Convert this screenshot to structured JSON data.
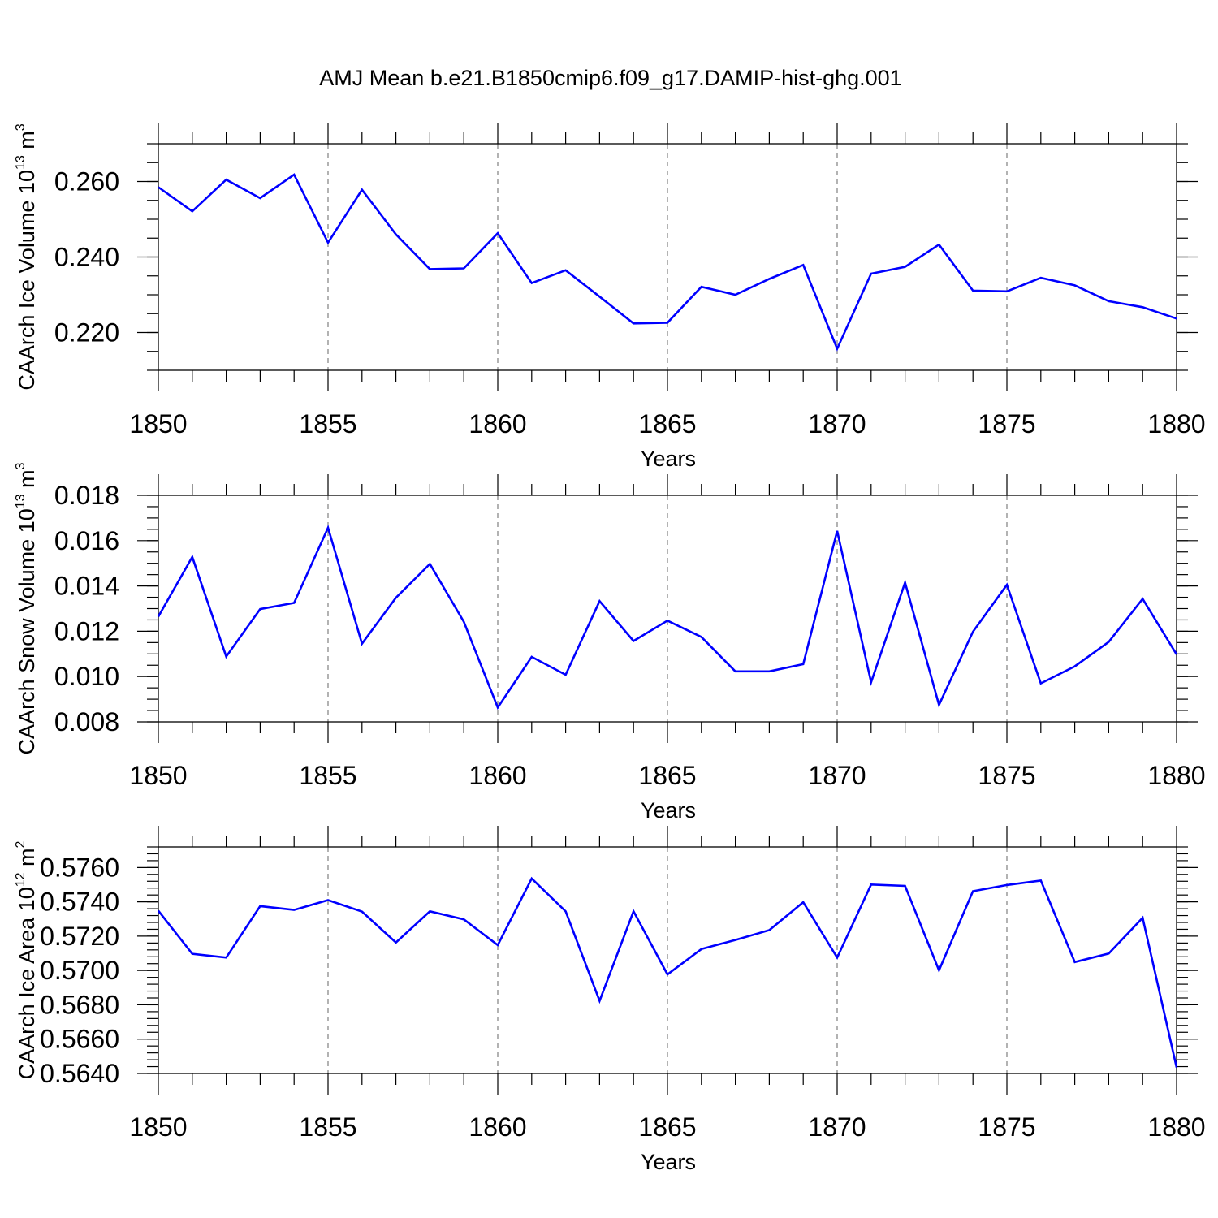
{
  "title": "AMJ Mean b.e21.B1850cmip6.f09_g17.DAMIP-hist-ghg.001",
  "colors": {
    "line": "#0000ff",
    "axis": "#000000",
    "grid": "#808080",
    "background": "#ffffff"
  },
  "chart_data": [
    {
      "type": "line",
      "id": "ice-volume",
      "title": "",
      "xlabel": "Years",
      "ylabel": {
        "main": "CAArch Ice Volume 10",
        "exp": "13",
        "unit": " m",
        "unit_exp": "3"
      },
      "xlim": [
        1850,
        1880
      ],
      "ylim": [
        0.21,
        0.27
      ],
      "x_ticks": [
        1850,
        1855,
        1860,
        1865,
        1870,
        1875,
        1880
      ],
      "x_tick_labels": [
        "1850",
        "1855",
        "1860",
        "1865",
        "1870",
        "1875",
        "1880"
      ],
      "y_ticks": [
        0.22,
        0.24,
        0.26
      ],
      "y_tick_labels": [
        "0.220",
        "0.240",
        "0.260"
      ],
      "y_minor_step": 0.005,
      "grid": "x-dashed",
      "series": [
        {
          "name": "CAArch Ice Volume",
          "x": [
            1850,
            1851,
            1852,
            1853,
            1854,
            1855,
            1856,
            1857,
            1858,
            1859,
            1860,
            1861,
            1862,
            1863,
            1864,
            1865,
            1866,
            1867,
            1868,
            1869,
            1870,
            1871,
            1872,
            1873,
            1874,
            1875,
            1876,
            1877,
            1878,
            1879,
            1880
          ],
          "values": [
            0.2585,
            0.2521,
            0.2605,
            0.2556,
            0.2618,
            0.2438,
            0.2578,
            0.246,
            0.2368,
            0.237,
            0.2463,
            0.2331,
            0.2365,
            0.2295,
            0.2224,
            0.2226,
            0.2321,
            0.23,
            0.2342,
            0.2379,
            0.2157,
            0.2356,
            0.2374,
            0.2433,
            0.2311,
            0.2309,
            0.2345,
            0.2325,
            0.2283,
            0.2267,
            0.2237
          ]
        }
      ]
    },
    {
      "type": "line",
      "id": "snow-volume",
      "title": "",
      "xlabel": "Years",
      "ylabel": {
        "main": "CAArch Snow Volume 10",
        "exp": "13",
        "unit": " m",
        "unit_exp": "3"
      },
      "xlim": [
        1850,
        1880
      ],
      "ylim": [
        0.008,
        0.018
      ],
      "x_ticks": [
        1850,
        1855,
        1860,
        1865,
        1870,
        1875,
        1880
      ],
      "x_tick_labels": [
        "1850",
        "1855",
        "1860",
        "1865",
        "1870",
        "1875",
        "1880"
      ],
      "y_ticks": [
        0.008,
        0.01,
        0.012,
        0.014,
        0.016,
        0.018
      ],
      "y_tick_labels": [
        "0.008",
        "0.010",
        "0.012",
        "0.014",
        "0.016",
        "0.018"
      ],
      "y_minor_step": 0.0005,
      "grid": "x-dashed",
      "series": [
        {
          "name": "CAArch Snow Volume",
          "x": [
            1850,
            1851,
            1852,
            1853,
            1854,
            1855,
            1856,
            1857,
            1858,
            1859,
            1860,
            1861,
            1862,
            1863,
            1864,
            1865,
            1866,
            1867,
            1868,
            1869,
            1870,
            1871,
            1872,
            1873,
            1874,
            1875,
            1876,
            1877,
            1878,
            1879,
            1880
          ],
          "values": [
            0.01265,
            0.01528,
            0.01088,
            0.01298,
            0.01325,
            0.01657,
            0.01145,
            0.01348,
            0.01497,
            0.01242,
            0.00863,
            0.01087,
            0.01008,
            0.01333,
            0.01157,
            0.01247,
            0.01175,
            0.01023,
            0.01023,
            0.01055,
            0.01643,
            0.00975,
            0.01415,
            0.00875,
            0.01198,
            0.01405,
            0.0097,
            0.01045,
            0.01153,
            0.01343,
            0.01098
          ]
        }
      ]
    },
    {
      "type": "line",
      "id": "ice-area",
      "title": "",
      "xlabel": "Years",
      "ylabel": {
        "main": "CAArch Ice Area 10",
        "exp": "12",
        "unit": " m",
        "unit_exp": "2"
      },
      "xlim": [
        1850,
        1880
      ],
      "ylim": [
        0.564,
        0.5772
      ],
      "x_ticks": [
        1850,
        1855,
        1860,
        1865,
        1870,
        1875,
        1880
      ],
      "x_tick_labels": [
        "1850",
        "1855",
        "1860",
        "1865",
        "1870",
        "1875",
        "1880"
      ],
      "y_ticks": [
        0.564,
        0.566,
        0.568,
        0.57,
        0.572,
        0.574,
        0.576
      ],
      "y_tick_labels": [
        "0.5640",
        "0.5660",
        "0.5680",
        "0.5700",
        "0.5720",
        "0.5740",
        "0.5760"
      ],
      "y_minor_step": 0.0004,
      "grid": "x-dashed",
      "series": [
        {
          "name": "CAArch Ice Area",
          "x": [
            1850,
            1851,
            1852,
            1853,
            1854,
            1855,
            1856,
            1857,
            1858,
            1859,
            1860,
            1861,
            1862,
            1863,
            1864,
            1865,
            1866,
            1867,
            1868,
            1869,
            1870,
            1871,
            1872,
            1873,
            1874,
            1875,
            1876,
            1877,
            1878,
            1879,
            1880
          ],
          "values": [
            0.57348,
            0.57097,
            0.57075,
            0.57375,
            0.57353,
            0.5741,
            0.57343,
            0.57163,
            0.57345,
            0.57298,
            0.57148,
            0.57536,
            0.57345,
            0.56823,
            0.57345,
            0.56977,
            0.57125,
            0.57178,
            0.57235,
            0.57398,
            0.57075,
            0.57501,
            0.57493,
            0.57001,
            0.57462,
            0.57498,
            0.57524,
            0.57049,
            0.57099,
            0.57307,
            0.56435
          ]
        }
      ]
    }
  ]
}
